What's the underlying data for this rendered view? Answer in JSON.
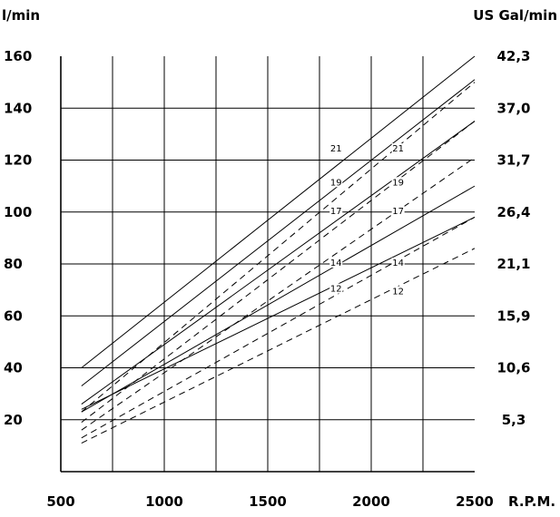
{
  "chart_data": {
    "type": "line",
    "ylabel_left": "l/min",
    "ylabel_right": "US Gal/min",
    "xlabel": "R.P.M.",
    "xlim": [
      500,
      2500
    ],
    "ylim": [
      0,
      160
    ],
    "x_ticks": [
      "500",
      "1000",
      "1500",
      "2000",
      "2500"
    ],
    "y_ticks_left": [
      "20",
      "40",
      "60",
      "80",
      "100",
      "120",
      "140",
      "160"
    ],
    "y_ticks_right": [
      "5,3",
      "10,6",
      "15,9",
      "21,1",
      "26,4",
      "31,7",
      "37,0",
      "42,3"
    ],
    "grid": true,
    "series": [
      {
        "name": "21",
        "style": "solid",
        "x": [
          600,
          2500
        ],
        "y": [
          40,
          160
        ]
      },
      {
        "name": "19",
        "style": "solid",
        "x": [
          600,
          2500
        ],
        "y": [
          33,
          151
        ]
      },
      {
        "name": "17",
        "style": "solid",
        "x": [
          600,
          2500
        ],
        "y": [
          26,
          135
        ]
      },
      {
        "name": "14",
        "style": "solid",
        "x": [
          600,
          2500
        ],
        "y": [
          23,
          110
        ]
      },
      {
        "name": "12",
        "style": "solid",
        "x": [
          600,
          2500
        ],
        "y": [
          24,
          98
        ]
      },
      {
        "name": "21",
        "style": "dashed",
        "x": [
          600,
          2500
        ],
        "y": [
          23,
          150
        ]
      },
      {
        "name": "19",
        "style": "dashed",
        "x": [
          600,
          2500
        ],
        "y": [
          19,
          135
        ]
      },
      {
        "name": "17",
        "style": "dashed",
        "x": [
          600,
          2500
        ],
        "y": [
          16,
          121
        ]
      },
      {
        "name": "14",
        "style": "dashed",
        "x": [
          600,
          2500
        ],
        "y": [
          13,
          98
        ]
      },
      {
        "name": "12",
        "style": "dashed",
        "x": [
          600,
          2500
        ],
        "y": [
          11,
          86
        ]
      }
    ],
    "annotations": [
      {
        "text": "21",
        "x": 1830,
        "y": 124
      },
      {
        "text": "19",
        "x": 1830,
        "y": 111
      },
      {
        "text": "17",
        "x": 1830,
        "y": 100
      },
      {
        "text": "14",
        "x": 1830,
        "y": 80
      },
      {
        "text": "12",
        "x": 1830,
        "y": 70
      },
      {
        "text": "21",
        "x": 2130,
        "y": 124
      },
      {
        "text": "19",
        "x": 2130,
        "y": 111
      },
      {
        "text": "17",
        "x": 2130,
        "y": 100
      },
      {
        "text": "14",
        "x": 2130,
        "y": 80
      },
      {
        "text": "12",
        "x": 2130,
        "y": 69
      }
    ]
  }
}
